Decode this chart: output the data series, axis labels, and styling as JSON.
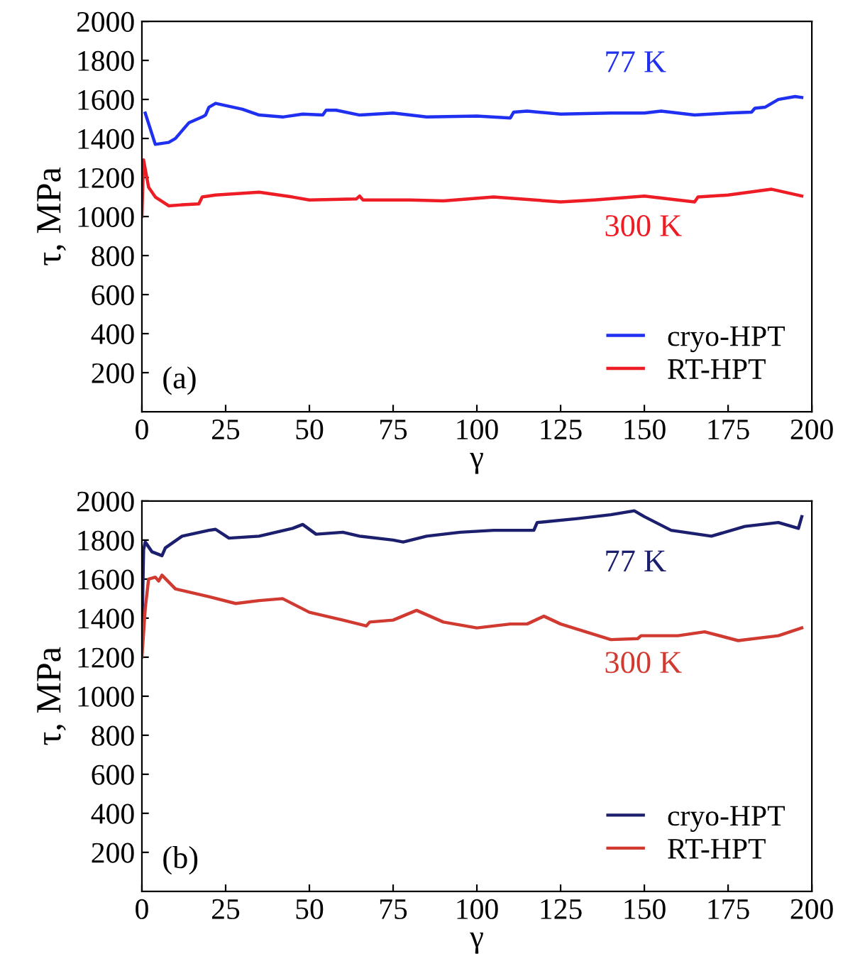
{
  "chart_data": [
    {
      "type": "line",
      "xlabel": "γ",
      "ylabel": "τ, MPa",
      "xlim": [
        0,
        200
      ],
      "ylim": [
        0,
        2000
      ],
      "xticks": [
        0,
        25,
        50,
        75,
        100,
        125,
        150,
        175,
        200
      ],
      "yticks": [
        200,
        400,
        600,
        800,
        1000,
        1200,
        1400,
        1600,
        1800,
        2000
      ],
      "legend": "bottom right",
      "grid": false,
      "annotations": [
        "77 K",
        "300 K",
        "(a)"
      ],
      "series": [
        {
          "name": "cryo-HPT",
          "color": "#2030f0",
          "x": [
            1,
            4,
            8,
            10,
            14,
            18,
            19,
            20,
            22,
            30,
            35,
            42,
            48,
            54,
            55,
            58,
            65,
            75,
            85,
            100,
            110,
            111,
            115,
            125,
            140,
            150,
            155,
            165,
            175,
            182,
            183,
            186,
            190,
            195,
            197
          ],
          "values": [
            1530,
            1370,
            1380,
            1400,
            1480,
            1510,
            1520,
            1560,
            1580,
            1550,
            1520,
            1510,
            1525,
            1520,
            1545,
            1545,
            1520,
            1530,
            1510,
            1515,
            1505,
            1535,
            1540,
            1525,
            1530,
            1530,
            1540,
            1520,
            1530,
            1535,
            1555,
            1560,
            1600,
            1615,
            1610
          ]
        },
        {
          "name": "RT-HPT",
          "color": "#ee1c24",
          "x": [
            0,
            0.5,
            2,
            4,
            8,
            12,
            17,
            18,
            22,
            35,
            45,
            50,
            64,
            65,
            66,
            80,
            90,
            105,
            125,
            135,
            150,
            165,
            166,
            175,
            188,
            197
          ],
          "values": [
            1000,
            1290,
            1150,
            1100,
            1055,
            1060,
            1065,
            1100,
            1110,
            1125,
            1100,
            1085,
            1090,
            1105,
            1085,
            1085,
            1080,
            1100,
            1075,
            1085,
            1105,
            1075,
            1100,
            1110,
            1140,
            1105
          ]
        }
      ]
    },
    {
      "type": "line",
      "xlabel": "γ",
      "ylabel": "τ, MPa",
      "xlim": [
        0,
        200
      ],
      "ylim": [
        0,
        2000
      ],
      "xticks": [
        0,
        25,
        50,
        75,
        100,
        125,
        150,
        175,
        200
      ],
      "yticks": [
        200,
        400,
        600,
        800,
        1000,
        1200,
        1400,
        1600,
        1800,
        2000
      ],
      "legend": "bottom right",
      "grid": false,
      "annotations": [
        "77 K",
        "300 K",
        "(b)"
      ],
      "series": [
        {
          "name": "cryo-HPT",
          "color": "#1c1f6e",
          "x": [
            0,
            0.5,
            1,
            3,
            6,
            7,
            12,
            20,
            22,
            26,
            35,
            45,
            48,
            52,
            60,
            65,
            75,
            78,
            85,
            95,
            105,
            117,
            118,
            130,
            140,
            147,
            150,
            158,
            170,
            180,
            190,
            196,
            197
          ],
          "values": [
            1300,
            1750,
            1790,
            1740,
            1720,
            1760,
            1820,
            1850,
            1855,
            1810,
            1820,
            1860,
            1880,
            1830,
            1840,
            1820,
            1800,
            1790,
            1820,
            1840,
            1850,
            1850,
            1890,
            1910,
            1930,
            1950,
            1920,
            1850,
            1820,
            1870,
            1890,
            1860,
            1920
          ]
        },
        {
          "name": "RT-HPT",
          "color": "#d03a30",
          "x": [
            0,
            1,
            2,
            4,
            5,
            6,
            10,
            20,
            28,
            35,
            42,
            50,
            60,
            67,
            68,
            75,
            82,
            90,
            100,
            110,
            115,
            120,
            125,
            140,
            148,
            149,
            160,
            168,
            178,
            190,
            197
          ],
          "values": [
            1200,
            1450,
            1600,
            1610,
            1590,
            1620,
            1550,
            1510,
            1475,
            1490,
            1500,
            1430,
            1390,
            1360,
            1380,
            1390,
            1440,
            1380,
            1350,
            1370,
            1370,
            1410,
            1370,
            1290,
            1295,
            1310,
            1310,
            1330,
            1285,
            1310,
            1350
          ]
        }
      ]
    }
  ]
}
